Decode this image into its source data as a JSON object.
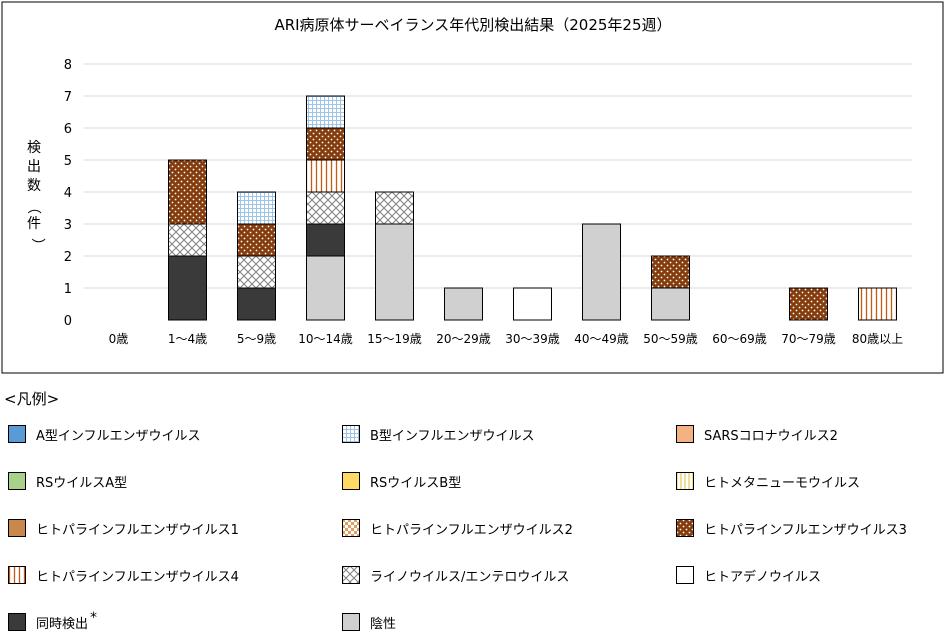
{
  "chart_data": {
    "type": "bar",
    "stacked": true,
    "title": "ARI病原体サーベイランス年代別検出結果（2025年25週）",
    "ylabel": "検出数（件）",
    "ylim": [
      0,
      8
    ],
    "yticks": [
      0,
      1,
      2,
      3,
      4,
      5,
      6,
      7,
      8
    ],
    "grid": true,
    "categories": [
      "0歳",
      "1〜4歳",
      "5〜9歳",
      "10〜14歳",
      "15〜19歳",
      "20〜29歳",
      "30〜39歳",
      "40〜49歳",
      "50〜59歳",
      "60〜69歳",
      "70〜79歳",
      "80歳以上"
    ],
    "series": [
      {
        "name": "A型インフルエンザウイルス",
        "pattern": "solid",
        "color": "#5b9bd5",
        "values": [
          0,
          0,
          0,
          0,
          0,
          0,
          0,
          0,
          0,
          0,
          0,
          0
        ]
      },
      {
        "name": "B型インフルエンザウイルス",
        "pattern": "grid",
        "color": "#9dc3e6",
        "values": [
          0,
          0,
          1,
          1,
          0,
          0,
          0,
          0,
          0,
          0,
          0,
          0
        ]
      },
      {
        "name": "SARSコロナウイルス2",
        "pattern": "solid",
        "color": "#f4b183",
        "values": [
          0,
          0,
          0,
          0,
          0,
          0,
          0,
          0,
          0,
          0,
          0,
          0
        ]
      },
      {
        "name": "RSウイルスA型",
        "pattern": "solid",
        "color": "#a9d18e",
        "values": [
          0,
          0,
          0,
          0,
          0,
          0,
          0,
          0,
          0,
          0,
          0,
          0
        ]
      },
      {
        "name": "RSウイルスB型",
        "pattern": "solid",
        "color": "#ffd966",
        "values": [
          0,
          0,
          0,
          0,
          0,
          0,
          0,
          0,
          0,
          0,
          0,
          0
        ]
      },
      {
        "name": "ヒトメタニューモウイルス",
        "pattern": "vlines",
        "color": "#e6c84d",
        "values": [
          0,
          0,
          0,
          0,
          0,
          0,
          0,
          0,
          0,
          0,
          0,
          0
        ]
      },
      {
        "name": "ヒトパラインフルエンザウイルス1",
        "pattern": "solid",
        "color": "#c9874f",
        "values": [
          0,
          0,
          0,
          0,
          0,
          0,
          0,
          0,
          0,
          0,
          0,
          0
        ]
      },
      {
        "name": "ヒトパラインフルエンザウイルス2",
        "pattern": "checker",
        "color": "#e0a060",
        "values": [
          0,
          0,
          0,
          0,
          0,
          0,
          0,
          0,
          0,
          0,
          0,
          0
        ]
      },
      {
        "name": "ヒトパラインフルエンザウイルス3",
        "pattern": "dots",
        "color": "#843c0c",
        "values": [
          0,
          2,
          1,
          1,
          0,
          0,
          0,
          0,
          1,
          0,
          1,
          0
        ]
      },
      {
        "name": "ヒトパラインフルエンザウイルス4",
        "pattern": "vlines",
        "color": "#c55a11",
        "values": [
          0,
          0,
          0,
          1,
          0,
          0,
          0,
          0,
          0,
          0,
          0,
          1
        ]
      },
      {
        "name": "ライノウイルス/エンテロウイルス",
        "pattern": "cross",
        "color": "#7f7f7f",
        "values": [
          0,
          1,
          1,
          1,
          1,
          0,
          0,
          0,
          0,
          0,
          0,
          0
        ]
      },
      {
        "name": "ヒトアデノウイルス",
        "pattern": "solid",
        "color": "#ffffff",
        "values": [
          0,
          0,
          0,
          0,
          0,
          0,
          1,
          0,
          0,
          0,
          0,
          0
        ]
      },
      {
        "name": "同時検出",
        "pattern": "solid",
        "color": "#3a3a3a",
        "values": [
          0,
          2,
          1,
          1,
          0,
          0,
          0,
          0,
          0,
          0,
          0,
          0
        ]
      },
      {
        "name": "陰性",
        "pattern": "solid",
        "color": "#d0d0d0",
        "values": [
          0,
          0,
          0,
          2,
          3,
          1,
          0,
          3,
          1,
          0,
          0,
          0
        ]
      }
    ],
    "stack_order": [
      "陰性",
      "同時検出",
      "ライノウイルス/エンテロウイルス",
      "ヒトパラインフルエンザウイルス4",
      "ヒトパラインフルエンザウイルス3",
      "B型インフルエンザウイルス",
      "ヒトアデノウイルス",
      "A型インフルエンザウイルス",
      "SARSコロナウイルス2",
      "RSウイルスA型",
      "RSウイルスB型",
      "ヒトメタニューモウイルス",
      "ヒトパラインフルエンザウイルス1",
      "ヒトパラインフルエンザウイルス2"
    ]
  },
  "legend": {
    "heading": "<凡例>",
    "footnote_mark": "*"
  }
}
